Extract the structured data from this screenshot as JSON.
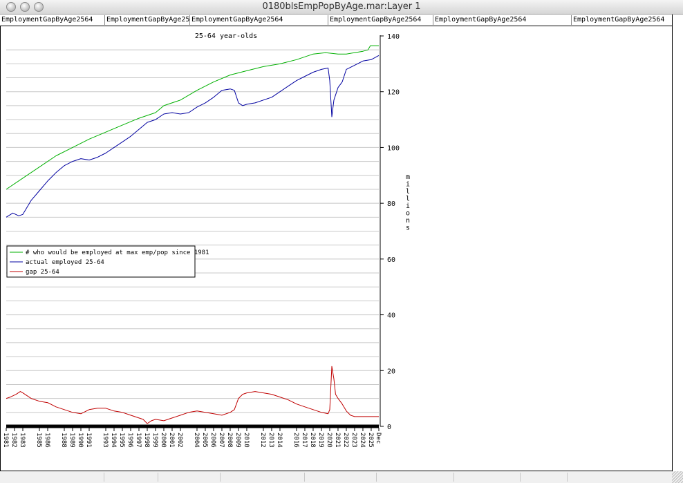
{
  "window": {
    "title": "0180blsEmpPopByAge.mar:Layer 1"
  },
  "tabs": [
    "EmploymentGapByAge2564",
    "EmploymentGapByAge25",
    "EmploymentGapByAge2564",
    "EmploymentGapByAge2564",
    "EmploymentGapByAge2564",
    "EmploymentGapByAge2564"
  ],
  "colors": {
    "potential": "#00b000",
    "actual": "#0000a0",
    "gap": "#c00000",
    "grid": "#c8c8c8"
  },
  "chart_data": {
    "type": "line",
    "title": "25-64 year-olds",
    "xlabel": "",
    "ylabel": "millions",
    "y_axis_side": "right",
    "ylim": [
      0,
      140
    ],
    "yticks": [
      0,
      20,
      40,
      60,
      80,
      100,
      120,
      140
    ],
    "xlim": [
      1981.0,
      2025.92
    ],
    "grid": true,
    "legend_position": "middle-left",
    "x_tick_labels": [
      "1981",
      "1982",
      "1983",
      "1985",
      "1986",
      "1988",
      "1989",
      "1990",
      "1991",
      "1993",
      "1994",
      "1995",
      "1996",
      "1997",
      "1998",
      "1999",
      "2000",
      "2001",
      "2002",
      "2004",
      "2005",
      "2006",
      "2007",
      "2008",
      "2009",
      "2010",
      "2012",
      "2013",
      "2014",
      "2016",
      "2017",
      "2018",
      "2019",
      "2020",
      "2021",
      "2022",
      "2023",
      "2024",
      "2025",
      "Dec"
    ],
    "x_tick_years": [
      1981.0,
      1982.0,
      1983.0,
      1985.0,
      1986.0,
      1988.0,
      1989.0,
      1990.0,
      1991.0,
      1993.0,
      1994.0,
      1995.0,
      1996.0,
      1997.0,
      1998.0,
      1999.0,
      2000.0,
      2001.0,
      2002.0,
      2004.0,
      2005.0,
      2006.0,
      2007.0,
      2008.0,
      2009.0,
      2010.0,
      2012.0,
      2013.0,
      2014.0,
      2016.0,
      2017.0,
      2018.0,
      2019.0,
      2020.0,
      2021.0,
      2022.0,
      2023.0,
      2024.0,
      2025.0,
      2025.92
    ],
    "series": [
      {
        "name": "# who would be employed at max emp/pop since 1981",
        "color": "#00b000",
        "points": [
          [
            1981.0,
            85
          ],
          [
            1983.0,
            89
          ],
          [
            1985.0,
            93
          ],
          [
            1987.0,
            97
          ],
          [
            1989.0,
            100
          ],
          [
            1991.0,
            103
          ],
          [
            1993.0,
            105.5
          ],
          [
            1995.0,
            108
          ],
          [
            1997.0,
            110.5
          ],
          [
            1999.0,
            112.5
          ],
          [
            2000.0,
            115
          ],
          [
            2002.0,
            117
          ],
          [
            2004.0,
            120.5
          ],
          [
            2006.0,
            123.5
          ],
          [
            2008.0,
            126
          ],
          [
            2010.0,
            127.5
          ],
          [
            2012.0,
            129
          ],
          [
            2014.0,
            130
          ],
          [
            2016.0,
            131.5
          ],
          [
            2018.0,
            133.5
          ],
          [
            2019.5,
            134
          ],
          [
            2021.0,
            133.5
          ],
          [
            2022.0,
            133.5
          ],
          [
            2023.0,
            134
          ],
          [
            2024.0,
            134.5
          ],
          [
            2024.6,
            135
          ],
          [
            2024.9,
            136.5
          ],
          [
            2025.92,
            136.5
          ]
        ]
      },
      {
        "name": "actual employed 25-64",
        "color": "#0000a0",
        "points": [
          [
            1981.0,
            75
          ],
          [
            1981.8,
            76.5
          ],
          [
            1982.5,
            75.5
          ],
          [
            1983.0,
            76
          ],
          [
            1984.0,
            81
          ],
          [
            1985.0,
            84.5
          ],
          [
            1986.0,
            88
          ],
          [
            1987.0,
            91
          ],
          [
            1988.0,
            93.5
          ],
          [
            1989.0,
            95
          ],
          [
            1990.0,
            96
          ],
          [
            1991.0,
            95.5
          ],
          [
            1992.0,
            96.5
          ],
          [
            1993.0,
            98
          ],
          [
            1994.0,
            100
          ],
          [
            1995.0,
            102
          ],
          [
            1996.0,
            104
          ],
          [
            1997.0,
            106.5
          ],
          [
            1998.0,
            109
          ],
          [
            1999.0,
            110
          ],
          [
            2000.0,
            112
          ],
          [
            2001.0,
            112.5
          ],
          [
            2002.0,
            112
          ],
          [
            2003.0,
            112.5
          ],
          [
            2004.0,
            114.5
          ],
          [
            2005.0,
            116
          ],
          [
            2006.0,
            118
          ],
          [
            2007.0,
            120.5
          ],
          [
            2008.0,
            121
          ],
          [
            2008.5,
            120.5
          ],
          [
            2009.0,
            116
          ],
          [
            2009.5,
            115
          ],
          [
            2010.0,
            115.5
          ],
          [
            2011.0,
            116
          ],
          [
            2012.0,
            117
          ],
          [
            2013.0,
            118
          ],
          [
            2014.0,
            120
          ],
          [
            2015.0,
            122
          ],
          [
            2016.0,
            124
          ],
          [
            2017.0,
            125.5
          ],
          [
            2018.0,
            127
          ],
          [
            2019.0,
            128
          ],
          [
            2019.8,
            128.5
          ],
          [
            2020.0,
            124
          ],
          [
            2020.25,
            111
          ],
          [
            2020.5,
            117
          ],
          [
            2021.0,
            121.5
          ],
          [
            2021.5,
            123.5
          ],
          [
            2022.0,
            128
          ],
          [
            2023.0,
            129.5
          ],
          [
            2024.0,
            131
          ],
          [
            2025.0,
            131.5
          ],
          [
            2025.92,
            133
          ]
        ]
      },
      {
        "name": "gap 25-64",
        "color": "#c00000",
        "points": [
          [
            1981.0,
            10
          ],
          [
            1981.5,
            10.5
          ],
          [
            1982.2,
            11.5
          ],
          [
            1982.7,
            12.5
          ],
          [
            1983.0,
            12
          ],
          [
            1983.5,
            11
          ],
          [
            1984.0,
            10
          ],
          [
            1985.0,
            9
          ],
          [
            1986.0,
            8.5
          ],
          [
            1987.0,
            7
          ],
          [
            1988.0,
            6
          ],
          [
            1989.0,
            5
          ],
          [
            1990.0,
            4.5
          ],
          [
            1991.0,
            6
          ],
          [
            1992.0,
            6.5
          ],
          [
            1993.0,
            6.5
          ],
          [
            1994.0,
            5.5
          ],
          [
            1995.0,
            5
          ],
          [
            1996.0,
            4
          ],
          [
            1997.0,
            3
          ],
          [
            1997.5,
            2.5
          ],
          [
            1998.0,
            1
          ],
          [
            1998.5,
            2
          ],
          [
            1999.0,
            2.5
          ],
          [
            2000.0,
            2
          ],
          [
            2001.0,
            3
          ],
          [
            2002.0,
            4
          ],
          [
            2003.0,
            5
          ],
          [
            2004.0,
            5.5
          ],
          [
            2005.0,
            5
          ],
          [
            2006.0,
            4.5
          ],
          [
            2007.0,
            4
          ],
          [
            2008.0,
            5
          ],
          [
            2008.5,
            6
          ],
          [
            2009.0,
            10
          ],
          [
            2009.5,
            11.5
          ],
          [
            2010.0,
            12
          ],
          [
            2011.0,
            12.5
          ],
          [
            2012.0,
            12
          ],
          [
            2013.0,
            11.5
          ],
          [
            2014.0,
            10.5
          ],
          [
            2015.0,
            9.5
          ],
          [
            2016.0,
            8
          ],
          [
            2017.0,
            7
          ],
          [
            2018.0,
            6
          ],
          [
            2019.0,
            5
          ],
          [
            2019.8,
            4.5
          ],
          [
            2020.0,
            6
          ],
          [
            2020.25,
            21.5
          ],
          [
            2020.5,
            17
          ],
          [
            2020.7,
            11.5
          ],
          [
            2021.0,
            10
          ],
          [
            2021.5,
            8
          ],
          [
            2022.0,
            5.5
          ],
          [
            2022.5,
            4
          ],
          [
            2023.0,
            3.5
          ],
          [
            2024.0,
            3.5
          ],
          [
            2025.0,
            3.5
          ],
          [
            2025.92,
            3.5
          ]
        ]
      }
    ]
  }
}
